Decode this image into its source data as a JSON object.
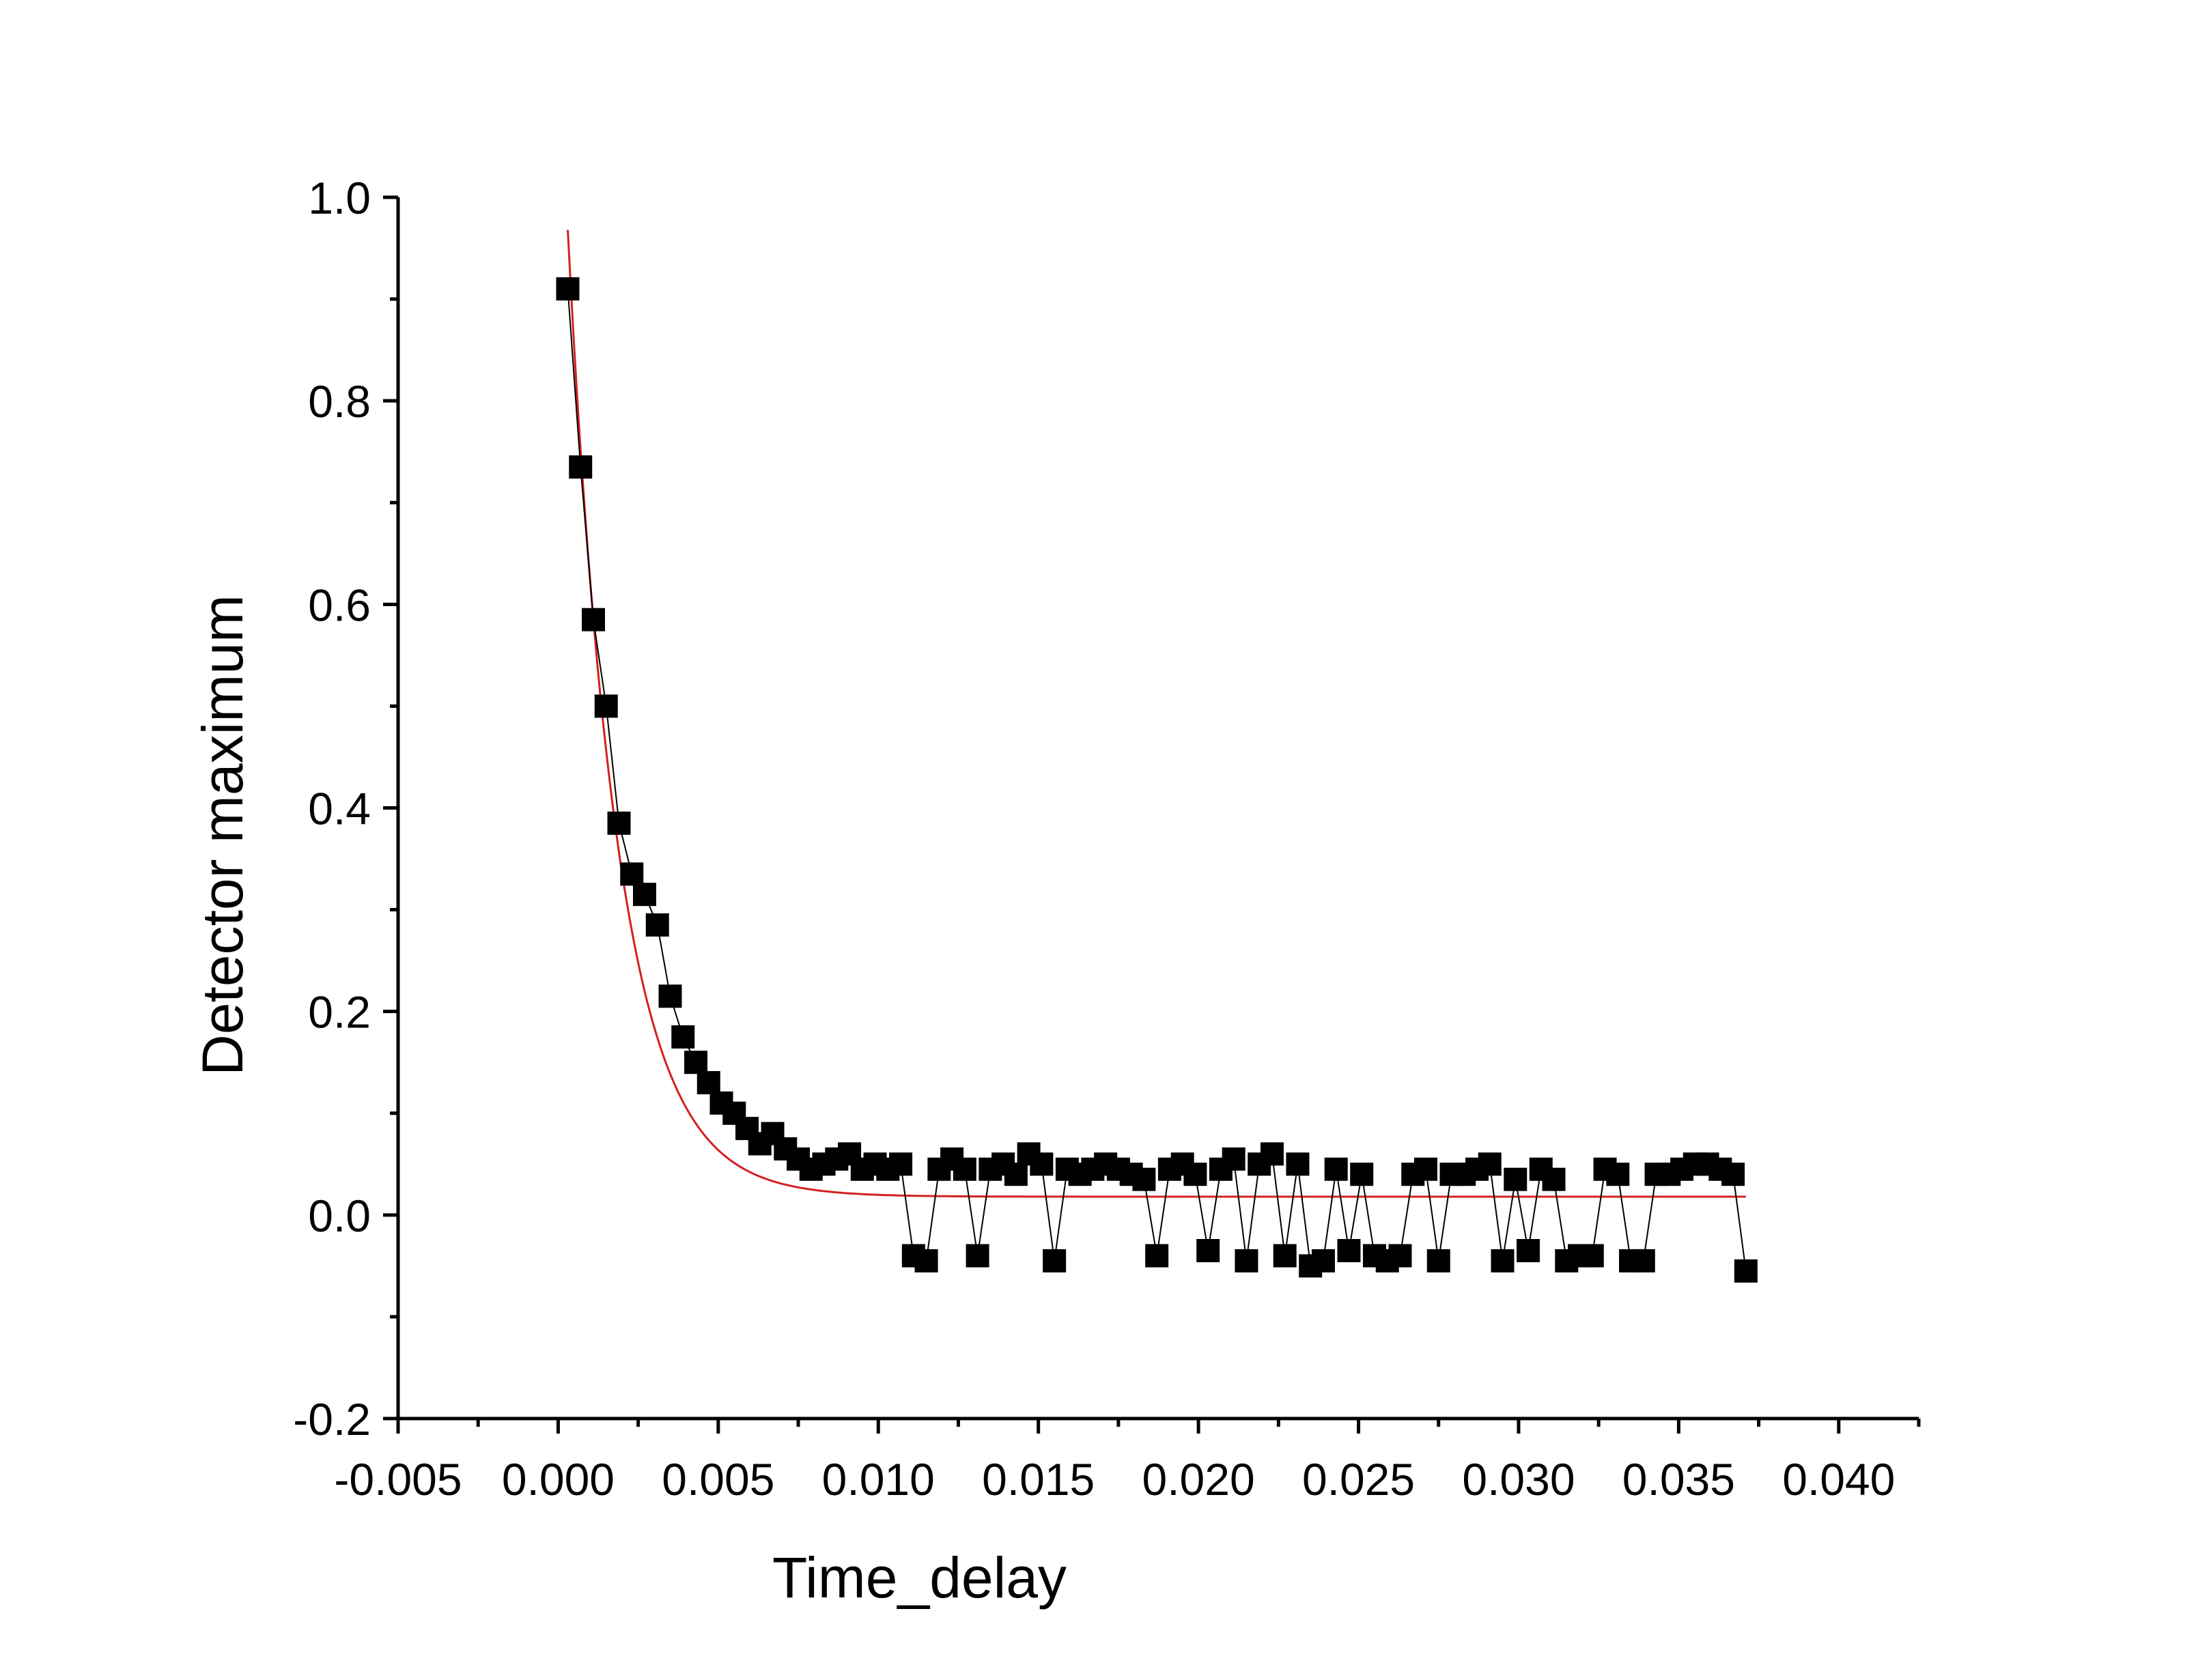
{
  "chart_data": {
    "type": "scatter",
    "title": "",
    "xlabel": "Time_delay",
    "ylabel": "Detector maximum",
    "xlim": [
      -0.005,
      0.0425
    ],
    "ylim": [
      -0.2,
      1.0
    ],
    "x_ticks": [
      "-0.005",
      "0.000",
      "0.005",
      "0.010",
      "0.015",
      "0.020",
      "0.025",
      "0.030",
      "0.035",
      "0.040"
    ],
    "y_ticks": [
      "-0.2",
      "0.0",
      "0.2",
      "0.4",
      "0.6",
      "0.8",
      "1.0"
    ],
    "grid": false,
    "legend": "none",
    "colors": {
      "points": "#000000",
      "connector": "#000000",
      "fit": "#d42020"
    },
    "series": [
      {
        "kind": "scatter-connected",
        "marker": "square",
        "x": [
          0.0003,
          0.0007,
          0.0011,
          0.0015,
          0.0019,
          0.0023,
          0.0027,
          0.0031,
          0.0035,
          0.0039,
          0.0043,
          0.0047,
          0.0051,
          0.0055,
          0.0059,
          0.0063,
          0.0067,
          0.0071,
          0.0075,
          0.0079,
          0.0083,
          0.0087,
          0.0091,
          0.0095,
          0.0099,
          0.0103,
          0.0107,
          0.0111,
          0.0115,
          0.0119,
          0.0123,
          0.0127,
          0.0131,
          0.0135,
          0.0139,
          0.0143,
          0.0147,
          0.0151,
          0.0155,
          0.0159,
          0.0163,
          0.0167,
          0.0171,
          0.0175,
          0.0179,
          0.0183,
          0.0187,
          0.0191,
          0.0195,
          0.0199,
          0.0203,
          0.0207,
          0.0211,
          0.0215,
          0.0219,
          0.0223,
          0.0227,
          0.0231,
          0.0235,
          0.0239,
          0.0243,
          0.0247,
          0.0251,
          0.0255,
          0.0259,
          0.0263,
          0.0267,
          0.0271,
          0.0275,
          0.0279,
          0.0283,
          0.0287,
          0.0291,
          0.0295,
          0.0299,
          0.0303,
          0.0307,
          0.0311,
          0.0315,
          0.0319,
          0.0323,
          0.0327,
          0.0331,
          0.0335,
          0.0339,
          0.0343,
          0.0347,
          0.0351,
          0.0355,
          0.0359,
          0.0363,
          0.0367,
          0.0371
        ],
        "y": [
          0.91,
          0.735,
          0.585,
          0.5,
          0.385,
          0.335,
          0.315,
          0.285,
          0.215,
          0.175,
          0.15,
          0.13,
          0.11,
          0.1,
          0.085,
          0.07,
          0.08,
          0.065,
          0.055,
          0.045,
          0.05,
          0.055,
          0.06,
          0.045,
          0.05,
          0.045,
          0.05,
          -0.04,
          -0.045,
          0.045,
          0.055,
          0.045,
          -0.04,
          0.045,
          0.05,
          0.04,
          0.06,
          0.05,
          -0.045,
          0.045,
          0.04,
          0.045,
          0.05,
          0.045,
          0.04,
          0.035,
          -0.04,
          0.045,
          0.05,
          0.04,
          -0.035,
          0.045,
          0.055,
          -0.045,
          0.05,
          0.06,
          -0.04,
          0.05,
          -0.05,
          -0.045,
          0.045,
          -0.035,
          0.04,
          -0.04,
          -0.045,
          -0.04,
          0.04,
          0.045,
          -0.045,
          0.04,
          0.04,
          0.045,
          0.05,
          -0.045,
          0.035,
          -0.035,
          0.045,
          0.035,
          -0.045,
          -0.04,
          -0.04,
          0.045,
          0.04,
          -0.045,
          -0.045,
          0.04,
          0.04,
          0.045,
          0.05,
          0.05,
          0.045,
          0.04,
          -0.055
        ]
      },
      {
        "kind": "fit-curve",
        "model": "y = y0 + A*exp(-x/t)",
        "y0": 0.018,
        "A": 0.95,
        "t": 0.00155,
        "x_range": [
          0.0003,
          0.0371
        ]
      }
    ]
  }
}
